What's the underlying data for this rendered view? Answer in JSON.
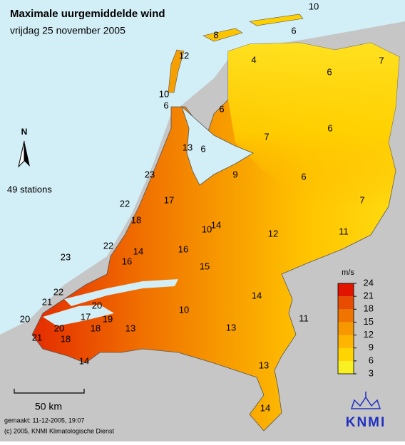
{
  "header": {
    "title": "Maximale uurgemiddelde wind",
    "subtitle": "vrijdag 25 november 2005"
  },
  "station_count": "49 stations",
  "north": "N",
  "scale": "50 km",
  "footer": [
    "gemaakt: 11-12-2005, 19:07",
    "(c) 2005, KNMI Klimatologische Dienst"
  ],
  "legend": {
    "unit": "m/s",
    "ticks": [
      3,
      6,
      9,
      12,
      15,
      18,
      21,
      24
    ],
    "colors": [
      "#f8f020",
      "#ffd400",
      "#ffb400",
      "#f89800",
      "#f07400",
      "#e84c00",
      "#e01400"
    ]
  },
  "logo": "KNMI",
  "stations": [
    10,
    8,
    6,
    12,
    4,
    7,
    6,
    10,
    6,
    6,
    6,
    7,
    13,
    6,
    23,
    9,
    6,
    7,
    22,
    17,
    18,
    10,
    14,
    12,
    11,
    22,
    14,
    16,
    16,
    23,
    15,
    22,
    21,
    20,
    17,
    19,
    20,
    20,
    18,
    13,
    10,
    14,
    11,
    13,
    21,
    18,
    14,
    13,
    14
  ]
}
